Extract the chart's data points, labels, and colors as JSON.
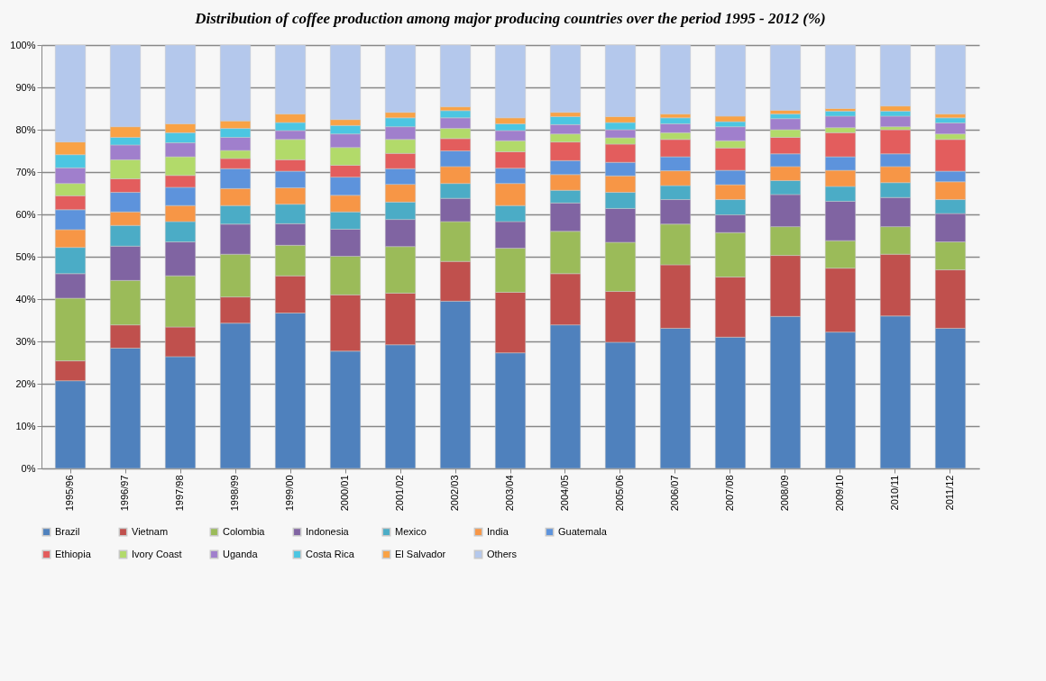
{
  "chart_data": {
    "type": "bar",
    "title": "Distribution of coffee production among major producing countries over the period 1995 - 2012 (%)",
    "stacked": true,
    "grid": "y",
    "legend": "bottom",
    "categories": [
      "1995/96",
      "1996/97",
      "1997/98",
      "1998/99",
      "1999/00",
      "2000/01",
      "2001/02",
      "2002/03",
      "2003/04",
      "2004/05",
      "2005/06",
      "2006/07",
      "2007/08",
      "2008/09",
      "2009/10",
      "2010/11",
      "2011/12"
    ],
    "ylim": [
      0,
      100
    ],
    "yticks": [
      {
        "value": 0,
        "label": "0%"
      },
      {
        "value": 10,
        "label": "10%"
      },
      {
        "value": 20,
        "label": "20%"
      },
      {
        "value": 30,
        "label": "30%"
      },
      {
        "value": 40,
        "label": "40%"
      },
      {
        "value": 50,
        "label": "50%"
      },
      {
        "value": 60,
        "label": "60%"
      },
      {
        "value": 70,
        "label": "70%"
      },
      {
        "value": 80,
        "label": "80%"
      },
      {
        "value": 90,
        "label": "90%"
      },
      {
        "value": 100,
        "label": "100%"
      }
    ],
    "series": [
      {
        "name": "Brazil",
        "color": "#4f81bd",
        "values": [
          20.7,
          28.4,
          26.4,
          34.3,
          36.7,
          27.7,
          29.2,
          39.5,
          27.3,
          33.9,
          29.8,
          33.1,
          31.0,
          35.9,
          32.2,
          36.0,
          33.1
        ]
      },
      {
        "name": "Vietnam",
        "color": "#c0504d",
        "values": [
          4.7,
          5.5,
          7.0,
          6.2,
          8.8,
          13.3,
          12.2,
          9.4,
          14.3,
          12.1,
          12.0,
          15.0,
          14.2,
          14.4,
          15.1,
          14.6,
          13.8
        ]
      },
      {
        "name": "Colombia",
        "color": "#9bbb59",
        "values": [
          14.8,
          10.5,
          12.1,
          10.1,
          7.2,
          9.1,
          11.0,
          9.4,
          10.4,
          10.0,
          11.6,
          9.6,
          10.5,
          6.8,
          6.5,
          6.5,
          6.6
        ]
      },
      {
        "name": "Indonesia",
        "color": "#8064a2",
        "values": [
          5.8,
          8.1,
          8.0,
          7.1,
          5.1,
          6.4,
          6.4,
          5.5,
          6.3,
          6.7,
          8.0,
          5.8,
          4.2,
          7.6,
          9.3,
          6.9,
          6.7
        ]
      },
      {
        "name": "Mexico",
        "color": "#4bacc6",
        "values": [
          6.2,
          4.9,
          4.8,
          4.4,
          4.6,
          4.1,
          4.1,
          3.5,
          3.8,
          3.0,
          3.8,
          3.3,
          3.6,
          3.3,
          3.5,
          3.5,
          3.3
        ]
      },
      {
        "name": "India",
        "color": "#f79646",
        "values": [
          4.2,
          3.2,
          3.8,
          4.0,
          3.9,
          3.9,
          4.2,
          4.0,
          5.2,
          3.7,
          3.9,
          3.5,
          3.5,
          3.3,
          3.8,
          3.8,
          4.2
        ]
      },
      {
        "name": "Guatemala",
        "color": "#5d93dc",
        "values": [
          4.7,
          4.6,
          4.3,
          4.7,
          3.9,
          4.3,
          3.7,
          3.7,
          3.6,
          3.3,
          3.2,
          3.3,
          3.4,
          3.0,
          3.2,
          3.0,
          2.5
        ]
      },
      {
        "name": "Ethiopia",
        "color": "#e35d5d",
        "values": [
          3.3,
          3.2,
          2.8,
          2.4,
          2.7,
          2.8,
          3.6,
          2.9,
          3.9,
          4.4,
          4.3,
          4.1,
          5.3,
          3.9,
          5.7,
          5.7,
          7.5
        ]
      },
      {
        "name": "Ivory Coast",
        "color": "#b2da6a",
        "values": [
          2.9,
          4.5,
          4.4,
          1.9,
          4.8,
          4.2,
          3.3,
          2.4,
          2.6,
          1.9,
          1.5,
          1.6,
          1.7,
          1.8,
          1.2,
          0.7,
          1.3
        ]
      },
      {
        "name": "Uganda",
        "color": "#a07fcc",
        "values": [
          3.7,
          3.5,
          3.3,
          3.1,
          2.1,
          3.2,
          3.0,
          2.5,
          2.4,
          2.2,
          1.9,
          2.1,
          3.3,
          2.6,
          2.7,
          2.5,
          2.6
        ]
      },
      {
        "name": "Costa Rica",
        "color": "#4cc6e2",
        "values": [
          3.1,
          1.8,
          2.4,
          2.1,
          1.9,
          2.0,
          2.1,
          1.7,
          1.6,
          1.9,
          1.7,
          1.4,
          1.2,
          1.1,
          1.2,
          1.2,
          1.2
        ]
      },
      {
        "name": "El Salvador",
        "color": "#f9a245",
        "values": [
          3.0,
          2.5,
          2.1,
          1.8,
          2.0,
          1.4,
          1.3,
          0.9,
          1.4,
          1.0,
          1.4,
          0.9,
          1.3,
          0.9,
          0.6,
          1.2,
          0.9
        ]
      },
      {
        "name": "Others",
        "color": "#b4c8ec",
        "values": [
          22.9,
          19.3,
          18.6,
          17.9,
          16.3,
          17.6,
          15.9,
          14.6,
          17.2,
          15.9,
          16.9,
          16.3,
          16.8,
          15.4,
          15.0,
          14.4,
          16.3
        ]
      }
    ]
  }
}
